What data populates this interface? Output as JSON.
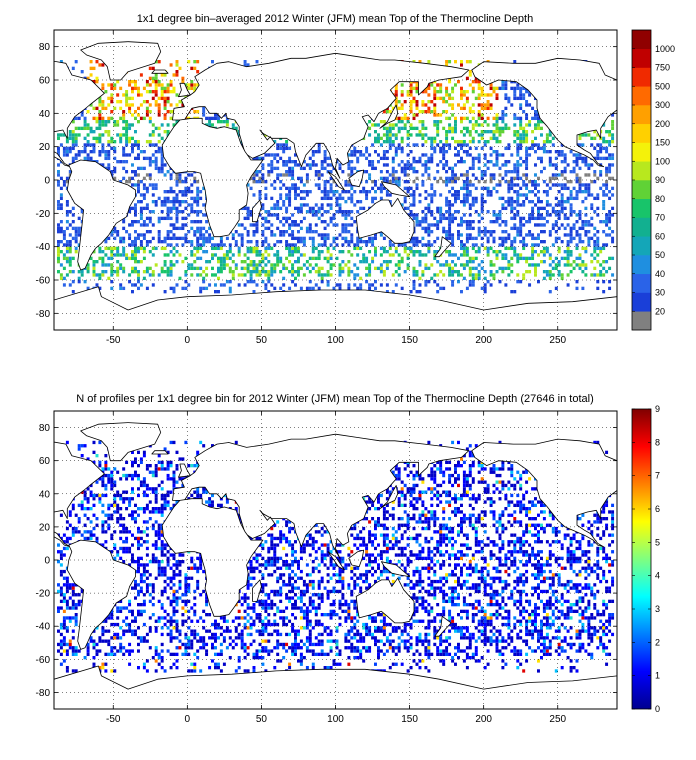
{
  "chart_data": [
    {
      "type": "heatmap",
      "title": "1x1 degree bin–averaged 2012 Winter (JFM) mean Top of the Thermocline Depth",
      "xlim": [
        -90,
        290
      ],
      "ylim": [
        -90,
        90
      ],
      "xticks": [
        -50,
        0,
        50,
        100,
        150,
        200,
        250
      ],
      "yticks": [
        80,
        60,
        40,
        20,
        0,
        -20,
        -40,
        -60,
        -80
      ],
      "grid": true,
      "colorbar": {
        "scale": "categorical",
        "labels": [
          "20",
          "30",
          "40",
          "50",
          "60",
          "70",
          "80",
          "90",
          "100",
          "150",
          "200",
          "300",
          "500",
          "750",
          "1000"
        ],
        "colors": [
          "#808080",
          "#1a3fd8",
          "#2a63e8",
          "#1f8fe0",
          "#14a6b8",
          "#12b090",
          "#18c46a",
          "#60d236",
          "#b8e81e",
          "#f4f20a",
          "#ffd000",
          "#ffa000",
          "#ff6a00",
          "#f02a00",
          "#c00000",
          "#900000"
        ]
      },
      "density_regions": [
        {
          "region": "north-atlantic",
          "lon": [
            -70,
            10
          ],
          "lat": [
            35,
            70
          ],
          "value_class": "high"
        },
        {
          "region": "northwest-pacific",
          "lon": [
            130,
            200
          ],
          "lat": [
            30,
            50
          ],
          "value_class": "high"
        },
        {
          "region": "southern-ocean",
          "lon": [
            -80,
            290
          ],
          "lat": [
            -62,
            -40
          ],
          "value_class": "mid"
        },
        {
          "region": "tropics",
          "lon": [
            -60,
            290
          ],
          "lat": [
            -30,
            30
          ],
          "value_class": "low"
        }
      ]
    },
    {
      "type": "heatmap",
      "title": "N of profiles per 1x1 degree bin for 2012 Winter (JFM) mean Top of the Thermocline Depth  (27646 in total)",
      "xlim": [
        -90,
        290
      ],
      "ylim": [
        -90,
        90
      ],
      "xticks": [
        -50,
        0,
        50,
        100,
        150,
        200,
        250
      ],
      "yticks": [
        80,
        60,
        40,
        20,
        0,
        -20,
        -40,
        -60,
        -80
      ],
      "grid": true,
      "total_profiles": 27646,
      "colorbar": {
        "scale": "linear",
        "min": 0,
        "max": 9,
        "ticks": [
          0,
          1,
          2,
          3,
          4,
          5,
          6,
          7,
          8,
          9
        ],
        "colormap": "jet"
      }
    }
  ]
}
